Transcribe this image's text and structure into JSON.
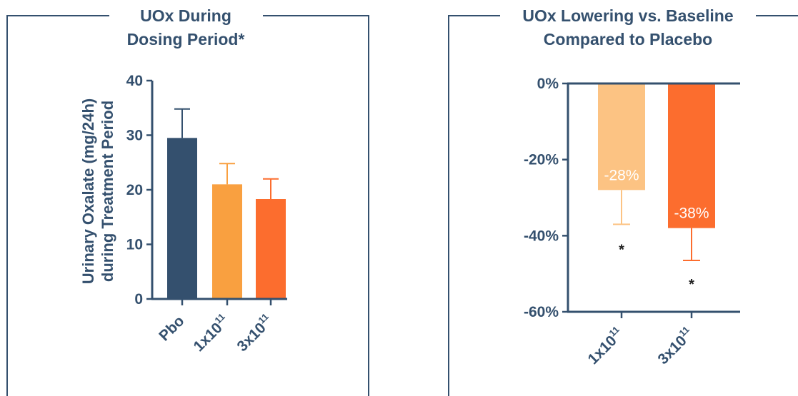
{
  "colors": {
    "frame": "#34506e",
    "axis": "#34506e",
    "pbo": "#34506e",
    "low_dose": "#f9a040",
    "high_dose": "#fc6d2e",
    "low_dose_light": "#fcc383"
  },
  "chart_data": [
    {
      "type": "bar",
      "title": "UOx During\nDosing Period*",
      "ylabel": "Urinary Oxalate (mg/24h)\nduring Treatment Period",
      "categories": [
        "Pbo",
        "1x10",
        "3x10"
      ],
      "category_superscripts": [
        "",
        "11",
        "11"
      ],
      "values": [
        29.5,
        21.0,
        18.3
      ],
      "error_upper": [
        34.8,
        24.8,
        22.0
      ],
      "ylim": [
        0,
        40
      ],
      "yticks": [
        "0",
        "10",
        "20",
        "30",
        "40"
      ],
      "bar_colors": [
        "#34506e",
        "#f9a040",
        "#fc6d2e"
      ]
    },
    {
      "type": "bar",
      "title": "UOx Lowering vs. Baseline\nCompared to Placebo",
      "categories": [
        "1x10",
        "3x10"
      ],
      "category_superscripts": [
        "11",
        "11"
      ],
      "values": [
        -28,
        -38
      ],
      "error_lower": [
        -37,
        -46.5
      ],
      "data_labels": [
        "-28%",
        "-38%"
      ],
      "significance_marks": [
        "*",
        "*"
      ],
      "ylim": [
        -60,
        0
      ],
      "yticks": [
        "0%",
        "-20%",
        "-40%",
        "-60%"
      ],
      "bar_colors": [
        "#fcc383",
        "#fc6d2e"
      ]
    }
  ]
}
